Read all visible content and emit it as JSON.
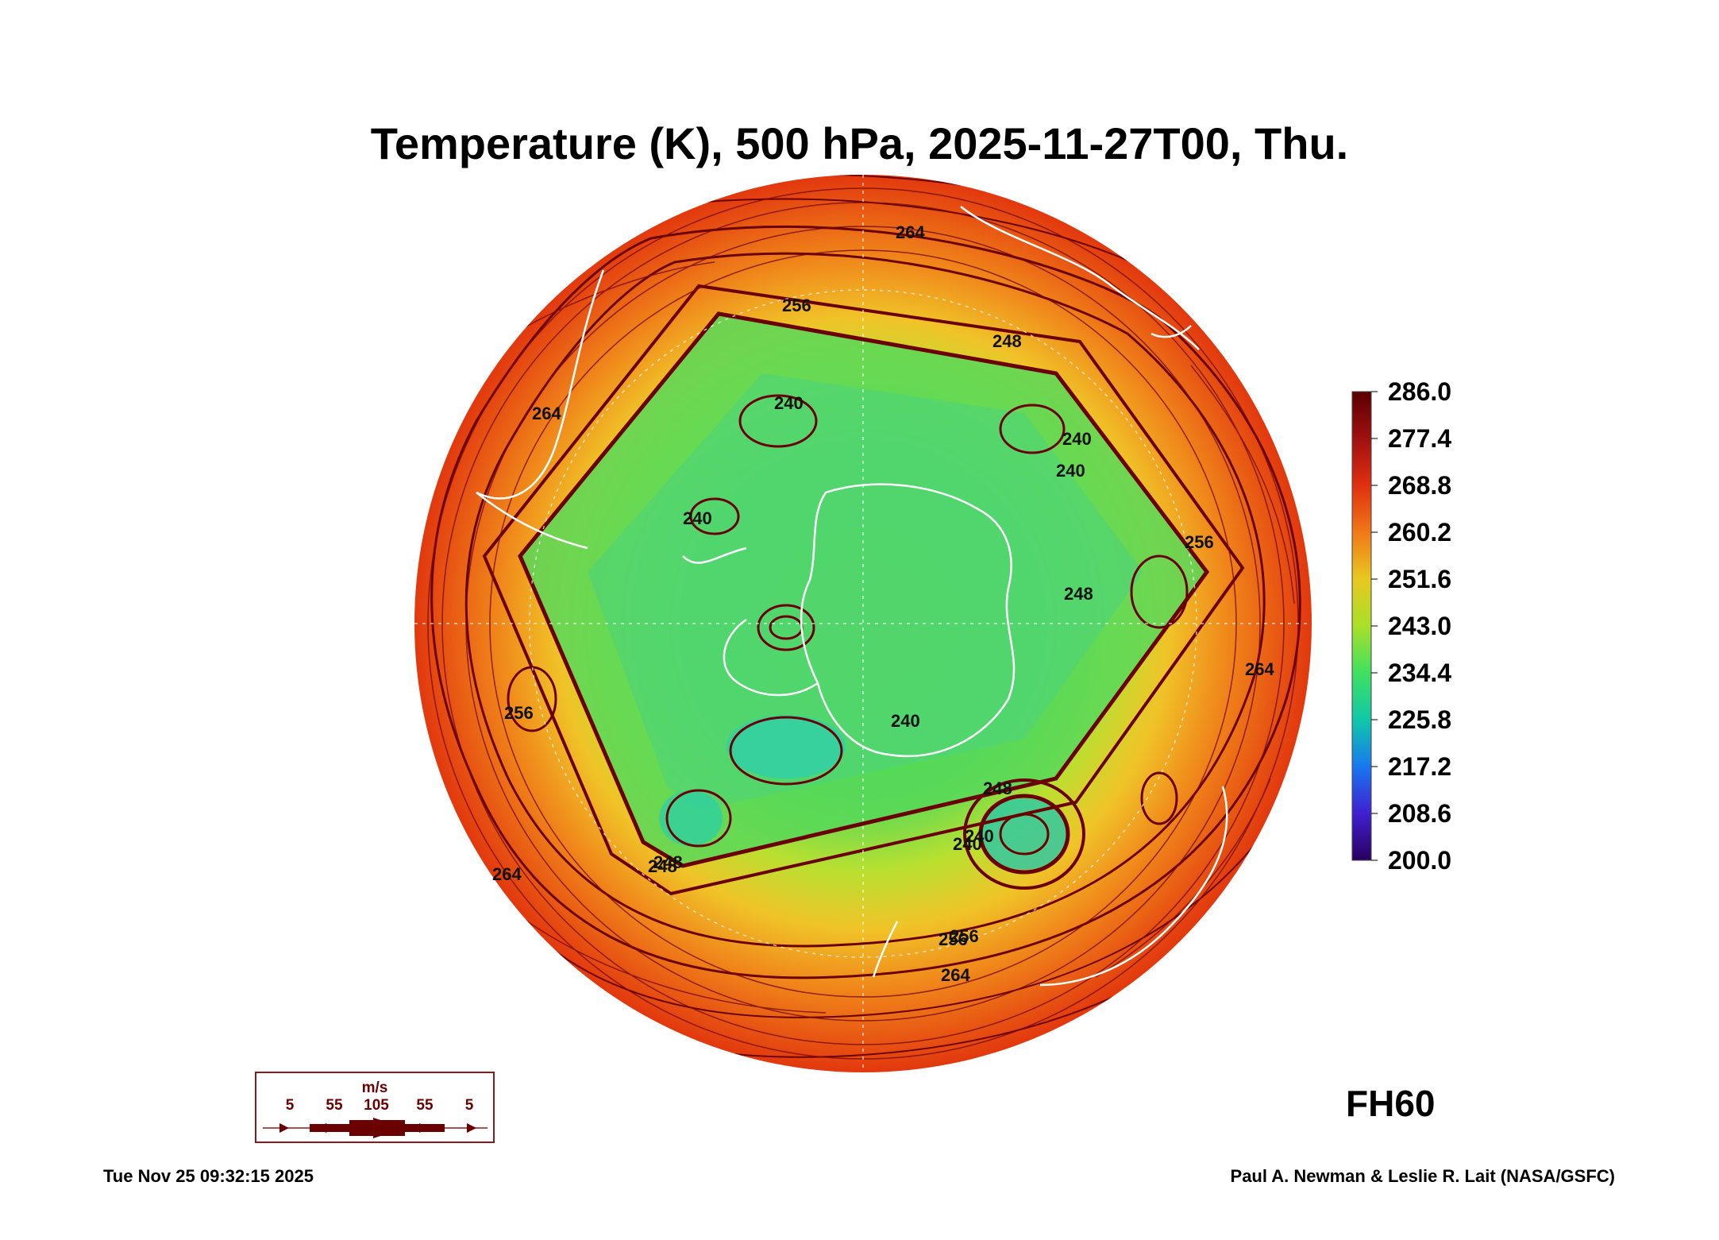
{
  "title": "Temperature (K), 500 hPa, 2025-11-27T00, Thu.",
  "forecast_hour": "FH60",
  "timestamp": "Tue Nov 25 09:32:15 2025",
  "credit": "Paul A. Newman & Leslie R. Lait (NASA/GSFC)",
  "colorbar": {
    "labels": [
      "286.0",
      "277.4",
      "268.8",
      "260.2",
      "251.6",
      "243.0",
      "234.4",
      "225.8",
      "217.2",
      "208.6",
      "200.0"
    ],
    "colors": [
      "#6a0000",
      "#b01010",
      "#e83010",
      "#f07010",
      "#e8c020",
      "#b0e020",
      "#40e060",
      "#10c0a0",
      "#1070f0",
      "#4020d0",
      "#300070"
    ]
  },
  "contour_labels": [
    "264",
    "256",
    "248",
    "240",
    "240",
    "240",
    "264",
    "256",
    "256",
    "248",
    "248",
    "240",
    "240",
    "248",
    "256",
    "264",
    "264",
    "248",
    "240",
    "240",
    "256",
    "264"
  ],
  "wind_legend": {
    "unit": "m/s",
    "values": [
      "5",
      "55",
      "105",
      "55",
      "5"
    ]
  },
  "colors": {
    "outer": "#e8400c",
    "mid": "#f4a41a",
    "inner": "#5cdc4c",
    "contour": "#6b0000",
    "coast": "#ffffff"
  }
}
